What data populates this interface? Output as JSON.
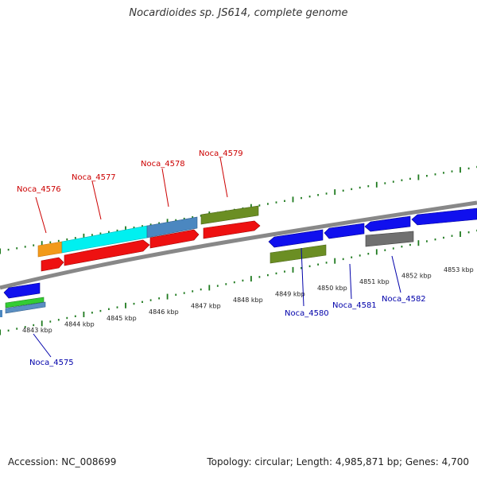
{
  "title": "Nocardioides sp. JS614, complete genome",
  "footer": {
    "accession": "Accession: NC_008699",
    "summary": "Topology: circular; Length: 4,985,871 bp; Genes: 4,700"
  },
  "colors": {
    "forward_label": "#cc0000",
    "reverse_label": "#0000aa",
    "scale_ticks": "#1f7a1f",
    "backbone": "#888888"
  },
  "scale": {
    "ticks": [
      "4843 kbp",
      "4844 kbp",
      "4845 kbp",
      "4846 kbp",
      "4847 kbp",
      "4848 kbp",
      "4849 kbp",
      "4850 kbp",
      "4851 kbp",
      "4852 kbp",
      "4853 kbp"
    ]
  },
  "gene_labels": {
    "forward": [
      "Noca_4576",
      "Noca_4577",
      "Noca_4578",
      "Noca_4579"
    ],
    "reverse": [
      "Noca_4575",
      "Noca_4580",
      "Noca_4581",
      "Noca_4582"
    ]
  }
}
